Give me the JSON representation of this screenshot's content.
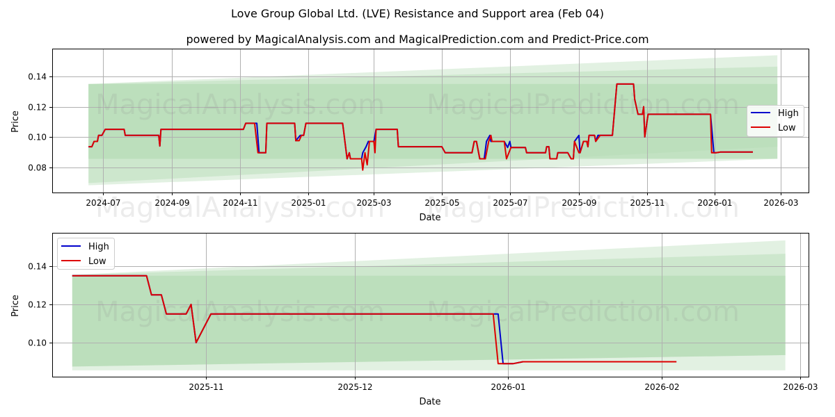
{
  "title": "Love Group Global Ltd. (LVE) Resistance and Support area (Feb 04)",
  "subtitle": "powered by MagicalAnalysis.com and MagicalPrediction.com and Predict-Price.com",
  "watermarks": [
    "MagicalAnalysis.com",
    "MagicalPrediction.com"
  ],
  "colors": {
    "high": "#0000cc",
    "low": "#dd0000",
    "band_light": "#d8ecd8",
    "band_mid": "#c4e3c4",
    "band_dark": "#b5dbb5",
    "grid": "#b0b0b0"
  },
  "chart_data": [
    {
      "type": "line",
      "title": "Love Group Global Ltd. (LVE) Resistance and Support area (Feb 04)",
      "xlabel": "Date",
      "ylabel": "Price",
      "x_ticks": [
        "2024-07",
        "2024-09",
        "2024-11",
        "2025-01",
        "2025-03",
        "2025-05",
        "2025-07",
        "2025-09",
        "2025-11",
        "2026-01",
        "2026-03"
      ],
      "y_ticks": [
        "0.08",
        "0.10",
        "0.12",
        "0.14"
      ],
      "ylim": [
        0.063,
        0.158
      ],
      "grid": true,
      "legend": {
        "position": "right",
        "entries": [
          "High",
          "Low"
        ]
      },
      "series": [
        {
          "name": "High",
          "points": [
            [
              "2024-06-18",
              0.0935
            ],
            [
              "2024-06-21",
              0.0935
            ],
            [
              "2024-06-23",
              0.097
            ],
            [
              "2024-06-26",
              0.097
            ],
            [
              "2024-06-27",
              0.101
            ],
            [
              "2024-06-30",
              0.101
            ],
            [
              "2024-07-03",
              0.105
            ],
            [
              "2024-07-20",
              0.105
            ],
            [
              "2024-07-21",
              0.101
            ],
            [
              "2024-08-20",
              0.101
            ],
            [
              "2024-08-21",
              0.094
            ],
            [
              "2024-08-22",
              0.105
            ],
            [
              "2024-11-04",
              0.105
            ],
            [
              "2024-11-06",
              0.109
            ],
            [
              "2024-11-16",
              0.109
            ],
            [
              "2024-11-18",
              0.0895
            ],
            [
              "2024-11-24",
              0.0895
            ],
            [
              "2024-11-25",
              0.109
            ],
            [
              "2024-12-20",
              0.109
            ],
            [
              "2024-12-21",
              0.0975
            ],
            [
              "2024-12-25",
              0.101
            ],
            [
              "2024-12-28",
              0.101
            ],
            [
              "2024-12-30",
              0.109
            ],
            [
              "2025-02-01",
              0.109
            ],
            [
              "2025-02-05",
              0.0855
            ],
            [
              "2025-02-07",
              0.0895
            ],
            [
              "2025-02-08",
              0.0855
            ],
            [
              "2025-02-18",
              0.0855
            ],
            [
              "2025-02-19",
              0.0895
            ],
            [
              "2025-02-22",
              0.0935
            ],
            [
              "2025-02-24",
              0.097
            ],
            [
              "2025-03-01",
              0.097
            ],
            [
              "2025-03-03",
              0.105
            ],
            [
              "2025-03-22",
              0.105
            ],
            [
              "2025-03-23",
              0.0935
            ],
            [
              "2025-05-01",
              0.0935
            ],
            [
              "2025-05-04",
              0.0895
            ],
            [
              "2025-05-28",
              0.0895
            ],
            [
              "2025-05-30",
              0.097
            ],
            [
              "2025-06-01",
              0.097
            ],
            [
              "2025-06-04",
              0.0855
            ],
            [
              "2025-06-08",
              0.0855
            ],
            [
              "2025-06-10",
              0.097
            ],
            [
              "2025-06-13",
              0.101
            ],
            [
              "2025-06-14",
              0.097
            ],
            [
              "2025-06-26",
              0.097
            ],
            [
              "2025-06-29",
              0.093
            ],
            [
              "2025-07-01",
              0.097
            ],
            [
              "2025-07-02",
              0.093
            ],
            [
              "2025-07-15",
              0.093
            ],
            [
              "2025-07-16",
              0.0895
            ],
            [
              "2025-08-02",
              0.0895
            ],
            [
              "2025-08-03",
              0.0935
            ],
            [
              "2025-08-05",
              0.0935
            ],
            [
              "2025-08-06",
              0.0855
            ],
            [
              "2025-08-12",
              0.0855
            ],
            [
              "2025-08-13",
              0.0895
            ],
            [
              "2025-08-22",
              0.0895
            ],
            [
              "2025-08-25",
              0.0855
            ],
            [
              "2025-08-27",
              0.0855
            ],
            [
              "2025-08-28",
              0.097
            ],
            [
              "2025-09-01",
              0.101
            ],
            [
              "2025-09-02",
              0.0895
            ],
            [
              "2025-09-05",
              0.097
            ],
            [
              "2025-09-08",
              0.097
            ],
            [
              "2025-09-09",
              0.0935
            ],
            [
              "2025-09-10",
              0.101
            ],
            [
              "2025-09-15",
              0.101
            ],
            [
              "2025-09-16",
              0.097
            ],
            [
              "2025-09-18",
              0.101
            ],
            [
              "2025-09-20",
              0.101
            ],
            [
              "2025-10-01",
              0.101
            ],
            [
              "2025-10-05",
              0.135
            ],
            [
              "2025-10-20",
              0.135
            ],
            [
              "2025-10-21",
              0.125
            ],
            [
              "2025-10-24",
              0.115
            ],
            [
              "2025-10-28",
              0.115
            ],
            [
              "2025-10-29",
              0.12
            ],
            [
              "2025-10-30",
              0.1
            ],
            [
              "2025-11-02",
              0.115
            ],
            [
              "2025-12-28",
              0.115
            ],
            [
              "2025-12-31",
              0.0895
            ],
            [
              "2026-01-02",
              0.0895
            ],
            [
              "2026-01-06",
              0.09
            ],
            [
              "2026-02-04",
              0.09
            ]
          ]
        },
        {
          "name": "Low",
          "points": [
            [
              "2024-06-18",
              0.0935
            ],
            [
              "2024-06-21",
              0.0935
            ],
            [
              "2024-06-23",
              0.097
            ],
            [
              "2024-06-26",
              0.097
            ],
            [
              "2024-06-27",
              0.101
            ],
            [
              "2024-06-30",
              0.101
            ],
            [
              "2024-07-03",
              0.105
            ],
            [
              "2024-07-20",
              0.105
            ],
            [
              "2024-07-21",
              0.101
            ],
            [
              "2024-08-20",
              0.101
            ],
            [
              "2024-08-21",
              0.094
            ],
            [
              "2024-08-22",
              0.105
            ],
            [
              "2024-11-04",
              0.105
            ],
            [
              "2024-11-06",
              0.109
            ],
            [
              "2024-11-14",
              0.109
            ],
            [
              "2024-11-17",
              0.0895
            ],
            [
              "2024-11-24",
              0.0895
            ],
            [
              "2024-11-25",
              0.109
            ],
            [
              "2024-12-20",
              0.109
            ],
            [
              "2024-12-21",
              0.0975
            ],
            [
              "2024-12-24",
              0.0975
            ],
            [
              "2024-12-26",
              0.101
            ],
            [
              "2024-12-28",
              0.101
            ],
            [
              "2024-12-30",
              0.109
            ],
            [
              "2025-02-01",
              0.109
            ],
            [
              "2025-02-05",
              0.0855
            ],
            [
              "2025-02-07",
              0.0895
            ],
            [
              "2025-02-08",
              0.0855
            ],
            [
              "2025-02-18",
              0.0855
            ],
            [
              "2025-02-19",
              0.078
            ],
            [
              "2025-02-21",
              0.0895
            ],
            [
              "2025-02-23",
              0.0815
            ],
            [
              "2025-02-25",
              0.097
            ],
            [
              "2025-03-01",
              0.097
            ],
            [
              "2025-03-02",
              0.0895
            ],
            [
              "2025-03-03",
              0.105
            ],
            [
              "2025-03-22",
              0.105
            ],
            [
              "2025-03-23",
              0.0935
            ],
            [
              "2025-05-01",
              0.0935
            ],
            [
              "2025-05-04",
              0.0895
            ],
            [
              "2025-05-28",
              0.0895
            ],
            [
              "2025-05-30",
              0.097
            ],
            [
              "2025-06-01",
              0.097
            ],
            [
              "2025-06-04",
              0.0855
            ],
            [
              "2025-06-09",
              0.0855
            ],
            [
              "2025-06-12",
              0.097
            ],
            [
              "2025-06-14",
              0.101
            ],
            [
              "2025-06-15",
              0.097
            ],
            [
              "2025-06-26",
              0.097
            ],
            [
              "2025-06-28",
              0.0855
            ],
            [
              "2025-07-02",
              0.093
            ],
            [
              "2025-07-15",
              0.093
            ],
            [
              "2025-07-16",
              0.0895
            ],
            [
              "2025-08-02",
              0.0895
            ],
            [
              "2025-08-03",
              0.0935
            ],
            [
              "2025-08-05",
              0.0935
            ],
            [
              "2025-08-06",
              0.0855
            ],
            [
              "2025-08-12",
              0.0855
            ],
            [
              "2025-08-13",
              0.0895
            ],
            [
              "2025-08-22",
              0.0895
            ],
            [
              "2025-08-25",
              0.0855
            ],
            [
              "2025-08-27",
              0.0855
            ],
            [
              "2025-08-28",
              0.097
            ],
            [
              "2025-09-01",
              0.0895
            ],
            [
              "2025-09-02",
              0.0895
            ],
            [
              "2025-09-05",
              0.097
            ],
            [
              "2025-09-08",
              0.097
            ],
            [
              "2025-09-09",
              0.0935
            ],
            [
              "2025-09-10",
              0.101
            ],
            [
              "2025-09-15",
              0.101
            ],
            [
              "2025-09-16",
              0.097
            ],
            [
              "2025-09-20",
              0.101
            ],
            [
              "2025-10-01",
              0.101
            ],
            [
              "2025-10-05",
              0.135
            ],
            [
              "2025-10-20",
              0.135
            ],
            [
              "2025-10-21",
              0.125
            ],
            [
              "2025-10-24",
              0.115
            ],
            [
              "2025-10-28",
              0.115
            ],
            [
              "2025-10-29",
              0.12
            ],
            [
              "2025-10-30",
              0.1
            ],
            [
              "2025-11-02",
              0.115
            ],
            [
              "2025-12-28",
              0.115
            ],
            [
              "2025-12-29",
              0.0895
            ],
            [
              "2026-01-02",
              0.0895
            ],
            [
              "2026-01-06",
              0.09
            ],
            [
              "2026-02-04",
              0.09
            ]
          ]
        }
      ],
      "bands": [
        {
          "name": "outer",
          "x0": "2024-06-18",
          "x1": "2026-02-26",
          "upper": [
            0.135,
            0.154
          ],
          "lower": [
            0.068,
            0.0855
          ]
        },
        {
          "name": "mid",
          "x0": "2024-06-18",
          "x1": "2026-02-26",
          "upper": [
            0.135,
            0.1465
          ],
          "lower": [
            0.0695,
            0.0935
          ]
        },
        {
          "name": "inner",
          "x0": "2024-06-18",
          "x1": "2026-02-26",
          "upper": [
            0.135,
            0.135
          ],
          "lower": [
            0.0855,
            0.0855
          ]
        }
      ]
    },
    {
      "type": "line",
      "xlabel": "Date",
      "ylabel": "Price",
      "x_ticks": [
        "2025-11",
        "2025-12",
        "2026-01",
        "2026-02",
        "2026-03"
      ],
      "y_ticks": [
        "0.10",
        "0.12",
        "0.14"
      ],
      "ylim": [
        0.082,
        0.157
      ],
      "grid": true,
      "legend": {
        "position": "upper left",
        "entries": [
          "High",
          "Low"
        ]
      },
      "series": [
        {
          "name": "High",
          "points": [
            [
              "2025-10-05",
              0.135
            ],
            [
              "2025-10-20",
              0.135
            ],
            [
              "2025-10-21",
              0.125
            ],
            [
              "2025-10-23",
              0.125
            ],
            [
              "2025-10-24",
              0.115
            ],
            [
              "2025-10-28",
              0.115
            ],
            [
              "2025-10-29",
              0.12
            ],
            [
              "2025-10-30",
              0.1
            ],
            [
              "2025-11-02",
              0.115
            ],
            [
              "2025-12-30",
              0.115
            ],
            [
              "2025-12-31",
              0.089
            ],
            [
              "2026-01-02",
              0.089
            ],
            [
              "2026-01-04",
              0.09
            ],
            [
              "2026-02-04",
              0.09
            ]
          ]
        },
        {
          "name": "Low",
          "points": [
            [
              "2025-10-05",
              0.135
            ],
            [
              "2025-10-20",
              0.135
            ],
            [
              "2025-10-21",
              0.125
            ],
            [
              "2025-10-23",
              0.125
            ],
            [
              "2025-10-24",
              0.115
            ],
            [
              "2025-10-28",
              0.115
            ],
            [
              "2025-10-29",
              0.12
            ],
            [
              "2025-10-30",
              0.1
            ],
            [
              "2025-11-02",
              0.115
            ],
            [
              "2025-12-29",
              0.115
            ],
            [
              "2025-12-30",
              0.089
            ],
            [
              "2026-01-02",
              0.089
            ],
            [
              "2026-01-04",
              0.09
            ],
            [
              "2026-02-04",
              0.09
            ]
          ]
        }
      ],
      "bands": [
        {
          "name": "outer",
          "x0": "2025-10-05",
          "x1": "2026-02-26",
          "upper": [
            0.1355,
            0.1535
          ],
          "lower": [
            0.0855,
            0.0855
          ]
        },
        {
          "name": "mid",
          "x0": "2025-10-05",
          "x1": "2026-02-26",
          "upper": [
            0.1355,
            0.1465
          ],
          "lower": [
            0.0875,
            0.0935
          ]
        },
        {
          "name": "inner",
          "x0": "2025-10-05",
          "x1": "2026-02-26",
          "upper": [
            0.135,
            0.135
          ],
          "lower": [
            0.0875,
            0.0935
          ]
        }
      ]
    }
  ]
}
